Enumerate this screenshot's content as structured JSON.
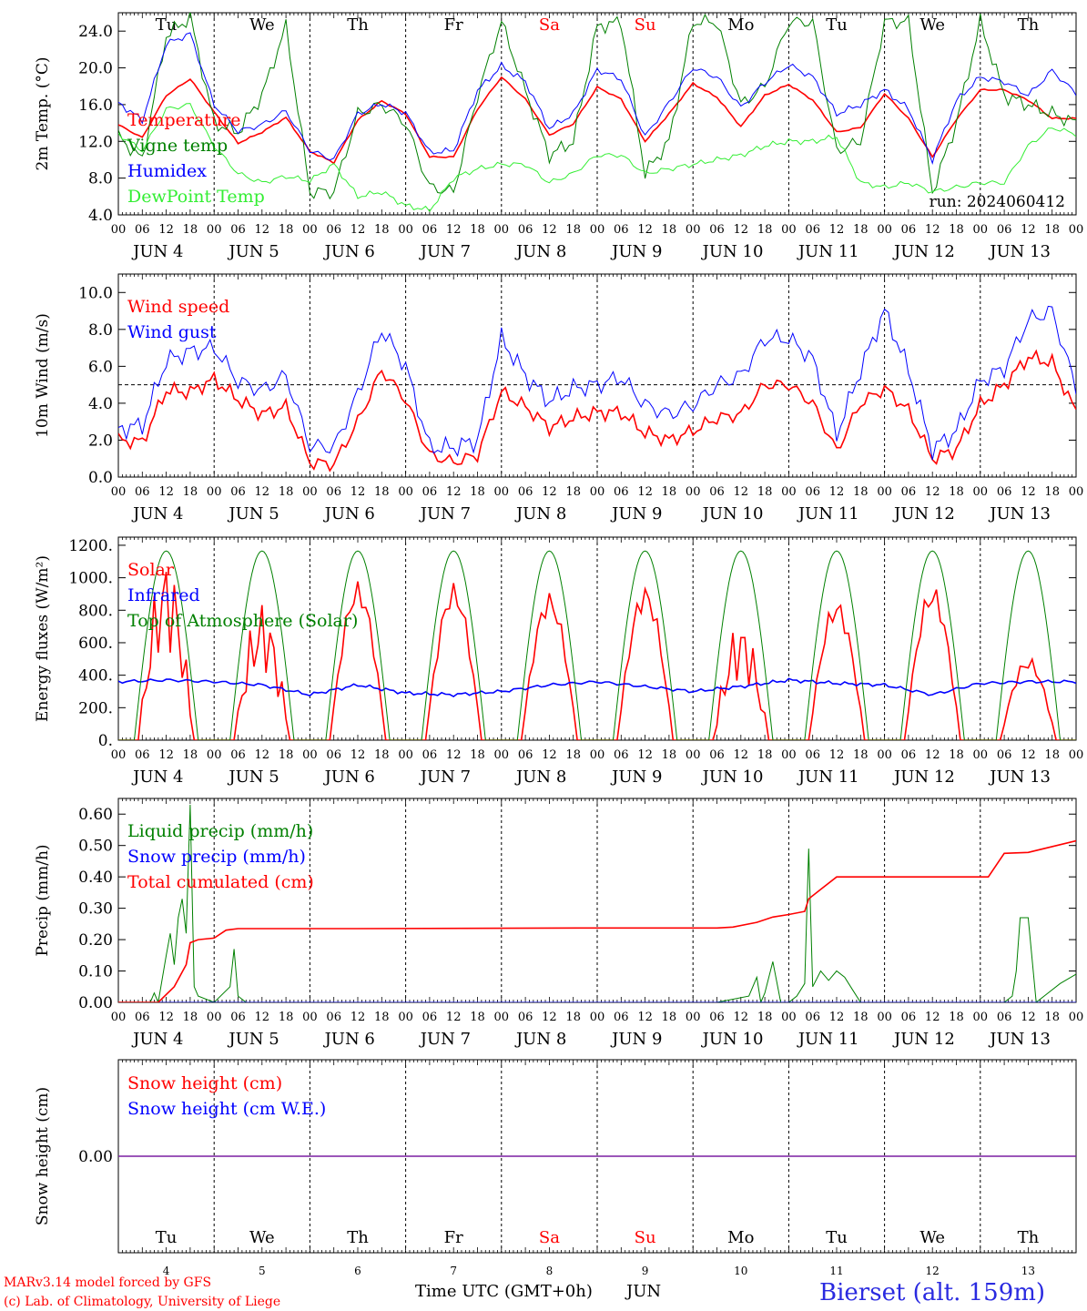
{
  "colors": {
    "red": "#ff0000",
    "blue": "#0000ff",
    "green": "#008000",
    "lightgreen": "#33ee33",
    "purple": "#7a1fa2",
    "black": "#000000",
    "station": "#2a2ae0"
  },
  "x_ticks": [
    "00",
    "06",
    "12",
    "18"
  ],
  "x_end_tick": "00",
  "days": [
    {
      "date": "JUN  4",
      "dow": "Tu",
      "weekend": false,
      "num": "4"
    },
    {
      "date": "JUN  5",
      "dow": "We",
      "weekend": false,
      "num": "5"
    },
    {
      "date": "JUN  6",
      "dow": "Th",
      "weekend": false,
      "num": "6"
    },
    {
      "date": "JUN  7",
      "dow": "Fr",
      "weekend": false,
      "num": "7"
    },
    {
      "date": "JUN  8",
      "dow": "Sa",
      "weekend": true,
      "num": "8"
    },
    {
      "date": "JUN  9",
      "dow": "Su",
      "weekend": true,
      "num": "9"
    },
    {
      "date": "JUN 10",
      "dow": "Mo",
      "weekend": false,
      "num": "10"
    },
    {
      "date": "JUN 11",
      "dow": "Tu",
      "weekend": false,
      "num": "11"
    },
    {
      "date": "JUN 12",
      "dow": "We",
      "weekend": false,
      "num": "12"
    },
    {
      "date": "JUN 13",
      "dow": "Th",
      "weekend": false,
      "num": "13"
    }
  ],
  "footer": {
    "credit1": "MARv3.14 model forced by GFS",
    "credit2": "(c) Lab. of Climatology, University of Liege",
    "xlabel": "Time UTC (GMT+0h)",
    "month": "JUN",
    "station": "Bierset (alt. 159m)"
  },
  "chart_data": [
    {
      "type": "line",
      "ylabel": "2m Temp. (°C)",
      "ylim": [
        4,
        26
      ],
      "yticks": [
        4,
        8,
        12,
        16,
        20,
        24
      ],
      "ytick_labels": [
        "4.0",
        "8.0",
        "12.0",
        "16.0",
        "20.0",
        "24.0"
      ],
      "note": "run: 2024060412",
      "x_hours": [
        0,
        240
      ],
      "series": [
        {
          "name": "Temperature",
          "color": "red",
          "x": [
            0,
            6,
            12,
            18,
            24,
            30,
            36,
            42,
            48,
            54,
            60,
            66,
            72,
            78,
            84,
            90,
            96,
            102,
            108,
            114,
            120,
            126,
            132,
            138,
            144,
            150,
            156,
            162,
            168,
            174,
            180,
            186,
            192,
            198,
            204,
            210,
            216,
            222,
            228,
            234,
            240
          ],
          "values": [
            13.8,
            12.4,
            17,
            18.8,
            15.2,
            11.8,
            13,
            14.6,
            10.9,
            9.7,
            14.3,
            16.4,
            15,
            10.3,
            10.3,
            15.5,
            19,
            16.6,
            12.7,
            13.9,
            17.9,
            16.6,
            12,
            15,
            18.3,
            16.8,
            13.6,
            17,
            18.2,
            16.5,
            13,
            13.5,
            17.2,
            14.5,
            10.3,
            14.4,
            17.6,
            17.6,
            16.5,
            14.5,
            14.5
          ]
        },
        {
          "name": "Vigne temp",
          "color": "green",
          "x": [
            0,
            6,
            12,
            18,
            24,
            30,
            36,
            42,
            48,
            54,
            60,
            66,
            72,
            78,
            84,
            90,
            96,
            102,
            108,
            114,
            120,
            126,
            132,
            138,
            144,
            150,
            156,
            162,
            168,
            174,
            180,
            186,
            192,
            198,
            204,
            210,
            216,
            222,
            228,
            234,
            240
          ],
          "values": [
            12.5,
            10,
            23.5,
            25.5,
            14,
            13,
            17,
            24.5,
            6.5,
            6.5,
            15,
            16,
            14,
            7,
            6.5,
            17,
            25,
            17.5,
            10.5,
            12,
            24.5,
            25,
            8.5,
            12,
            25,
            25,
            16,
            18,
            25,
            25,
            11,
            12,
            25,
            25,
            6.5,
            14,
            25,
            17,
            16,
            15,
            14
          ]
        },
        {
          "name": "Humidex",
          "color": "blue",
          "x": [
            0,
            6,
            12,
            18,
            24,
            30,
            36,
            42,
            48,
            54,
            60,
            66,
            72,
            78,
            84,
            90,
            96,
            102,
            108,
            114,
            120,
            126,
            132,
            138,
            144,
            150,
            156,
            162,
            168,
            174,
            180,
            186,
            192,
            198,
            204,
            210,
            216,
            222,
            228,
            234,
            240
          ],
          "values": [
            16.2,
            14.3,
            22.6,
            23.7,
            16,
            13.1,
            13.8,
            15.3,
            11,
            10,
            15,
            16.1,
            15.1,
            10.8,
            11,
            17.5,
            20.2,
            18.5,
            13.4,
            15,
            19.8,
            18.8,
            12.5,
            16.2,
            20,
            19,
            15.7,
            18.4,
            20.3,
            19,
            15,
            16,
            17.6,
            15.5,
            10,
            16.4,
            19,
            18.5,
            17,
            19.7,
            17.2
          ]
        },
        {
          "name": "DewPoint Temp",
          "color": "lightgreen",
          "x": [
            0,
            6,
            12,
            18,
            24,
            30,
            36,
            42,
            48,
            54,
            60,
            66,
            72,
            78,
            84,
            90,
            96,
            102,
            108,
            114,
            120,
            126,
            132,
            138,
            144,
            150,
            156,
            162,
            168,
            174,
            180,
            186,
            192,
            198,
            204,
            210,
            216,
            222,
            228,
            234,
            240
          ],
          "values": [
            12.8,
            11,
            15.5,
            16,
            11.5,
            8.5,
            7.5,
            8.2,
            7.7,
            9.5,
            6,
            6.5,
            5,
            4.5,
            8,
            9,
            9.5,
            9.5,
            7.5,
            8.5,
            10.5,
            10.5,
            8.5,
            9,
            9.5,
            10,
            10.5,
            11.5,
            12,
            12,
            12.5,
            7.5,
            7,
            7.5,
            6.5,
            7,
            7.5,
            7.5,
            11.5,
            13.5,
            12.8
          ]
        }
      ]
    },
    {
      "type": "line",
      "ylabel": "10m Wind (m/s)",
      "ylim": [
        0,
        11
      ],
      "yticks": [
        0,
        2,
        4,
        6,
        8,
        10
      ],
      "ytick_labels": [
        "0.0",
        "2.0",
        "4.0",
        "6.0",
        "8.0",
        "10.0"
      ],
      "reference_line": 5,
      "x_hours": [
        0,
        240
      ],
      "series": [
        {
          "name": "Wind speed",
          "color": "red",
          "x": [
            0,
            6,
            12,
            18,
            24,
            30,
            36,
            42,
            48,
            54,
            60,
            66,
            72,
            78,
            84,
            90,
            96,
            102,
            108,
            114,
            120,
            126,
            132,
            138,
            144,
            150,
            156,
            162,
            168,
            174,
            180,
            186,
            192,
            198,
            204,
            210,
            216,
            222,
            228,
            234,
            240
          ],
          "values": [
            2,
            1.9,
            4.7,
            4.6,
            5.3,
            4.2,
            3.4,
            3.8,
            0.8,
            0.7,
            3,
            5.8,
            4.2,
            1.2,
            0.8,
            1.2,
            4.6,
            3.8,
            2.7,
            3.2,
            3.5,
            3.5,
            2.4,
            2,
            2.5,
            3.2,
            3.4,
            5,
            5,
            4,
            1.4,
            4,
            4.8,
            3.6,
            1,
            1.5,
            3.9,
            5,
            6.5,
            6.2,
            3.5
          ]
        },
        {
          "name": "Wind gust",
          "color": "blue",
          "x": [
            0,
            6,
            12,
            18,
            24,
            30,
            36,
            42,
            48,
            54,
            60,
            66,
            72,
            78,
            84,
            90,
            96,
            102,
            108,
            114,
            120,
            126,
            132,
            138,
            144,
            150,
            156,
            162,
            168,
            174,
            180,
            186,
            192,
            198,
            204,
            210,
            216,
            222,
            228,
            234,
            240
          ],
          "values": [
            2.6,
            2.8,
            6.3,
            6.8,
            7,
            5.2,
            4.7,
            5.5,
            1.7,
            1.6,
            4.5,
            8,
            6,
            1.6,
            1.6,
            2,
            7.5,
            5.5,
            4.1,
            4.8,
            5,
            5.4,
            3.9,
            3.4,
            3.9,
            5,
            5.5,
            7.5,
            7.5,
            6.4,
            2.3,
            5.8,
            9,
            5.8,
            1.5,
            2.5,
            5.2,
            5.9,
            8.5,
            9,
            4.8
          ]
        }
      ]
    },
    {
      "type": "line",
      "ylabel": "Energy fluxes (W/m²)",
      "ylim": [
        0,
        1250
      ],
      "yticks": [
        0,
        200,
        400,
        600,
        800,
        1000,
        1200
      ],
      "ytick_labels": [
        "0.",
        "200.",
        "400.",
        "600.",
        "800.",
        "1000.",
        "1200."
      ],
      "x_hours": [
        0,
        240
      ],
      "series": [
        {
          "name": "Solar",
          "color": "red",
          "daily_peak": [
            850,
            640,
            900,
            890,
            840,
            880,
            560,
            800,
            880,
            470
          ]
        },
        {
          "name": "Infrared",
          "color": "blue",
          "x": [
            0,
            12,
            24,
            36,
            48,
            60,
            72,
            84,
            96,
            108,
            120,
            132,
            144,
            156,
            168,
            180,
            192,
            204,
            216,
            228,
            240
          ],
          "values": [
            360,
            370,
            360,
            340,
            280,
            340,
            290,
            280,
            300,
            340,
            360,
            330,
            300,
            330,
            370,
            350,
            340,
            280,
            350,
            360,
            360
          ]
        },
        {
          "name": "Top of Atmosphere (Solar)",
          "color": "green",
          "daily_peak": 1165,
          "daylight_hours": [
            4,
            20
          ]
        }
      ]
    },
    {
      "type": "line",
      "ylabel": "Precip (mm/h)",
      "ylim": [
        0,
        0.65
      ],
      "yticks": [
        0,
        0.1,
        0.2,
        0.3,
        0.4,
        0.5,
        0.6
      ],
      "ytick_labels": [
        "0.00",
        "0.10",
        "0.20",
        "0.30",
        "0.40",
        "0.50",
        "0.60"
      ],
      "x_hours": [
        0,
        240
      ],
      "series": [
        {
          "name": "Liquid precip (mm/h)",
          "color": "green",
          "x": [
            0,
            8,
            9,
            10,
            12,
            13,
            14,
            15,
            16,
            17,
            18,
            19,
            20,
            24,
            28,
            29,
            30,
            32,
            36,
            48,
            150,
            158,
            160,
            161,
            162,
            164,
            166,
            168,
            170,
            172,
            173,
            174,
            176,
            178,
            180,
            182,
            184,
            186,
            188,
            190,
            216,
            222,
            224,
            225,
            226,
            228,
            230,
            232,
            236,
            240
          ],
          "values": [
            0,
            0,
            0.03,
            0,
            0.15,
            0.22,
            0.12,
            0.27,
            0.33,
            0.22,
            0.63,
            0.05,
            0.02,
            0,
            0.05,
            0.17,
            0.02,
            0,
            0,
            0,
            0,
            0.02,
            0.08,
            0,
            0.03,
            0.13,
            0,
            0,
            0.02,
            0.06,
            0.49,
            0.05,
            0.1,
            0.07,
            0.1,
            0.08,
            0.04,
            0,
            0,
            0,
            0,
            0,
            0.02,
            0.1,
            0.27,
            0.27,
            0,
            0.02,
            0.06,
            0.09
          ]
        },
        {
          "name": "Snow precip (mm/h)",
          "color": "blue",
          "x": [
            0,
            240
          ],
          "values": [
            0,
            0
          ]
        },
        {
          "name": "Total cumulated (cm)",
          "color": "red",
          "x": [
            0,
            10,
            14,
            17,
            18,
            20,
            24,
            27,
            30,
            60,
            120,
            150,
            154,
            160,
            164,
            168,
            172,
            173,
            176,
            180,
            216,
            218,
            222,
            228,
            240
          ],
          "values": [
            0,
            0,
            0.05,
            0.12,
            0.19,
            0.2,
            0.205,
            0.23,
            0.235,
            0.235,
            0.237,
            0.237,
            0.24,
            0.255,
            0.272,
            0.28,
            0.29,
            0.33,
            0.36,
            0.4,
            0.4,
            0.4,
            0.475,
            0.478,
            0.515
          ]
        }
      ]
    },
    {
      "type": "line",
      "ylabel": "Snow height (cm)",
      "ylim": [
        -1,
        1
      ],
      "yticks": [
        0
      ],
      "ytick_labels": [
        "0.00"
      ],
      "x_hours": [
        0,
        240
      ],
      "series": [
        {
          "name": "Snow height (cm)",
          "color": "red",
          "x": [
            0,
            240
          ],
          "values": [
            0,
            0
          ]
        },
        {
          "name": "Snow height (cm W.E.)",
          "color": "blue",
          "x": [
            0,
            240
          ],
          "values": [
            0,
            0
          ]
        }
      ]
    }
  ]
}
